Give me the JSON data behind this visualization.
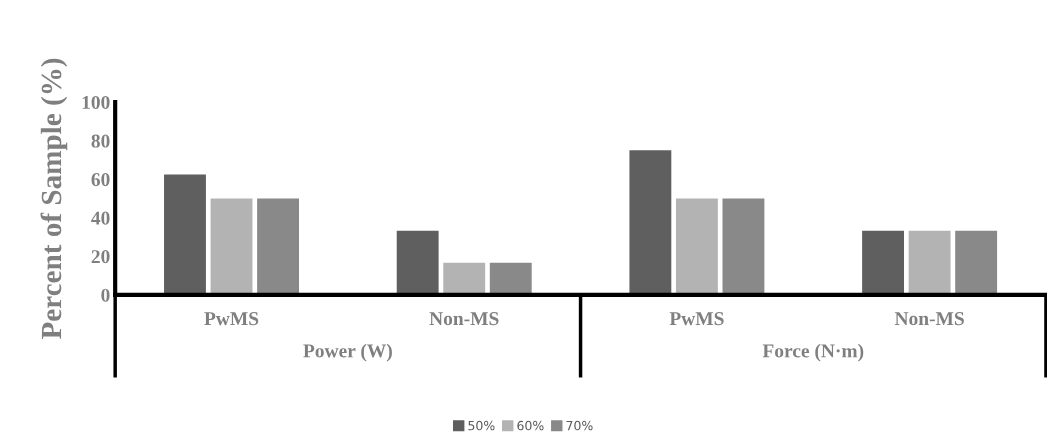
{
  "chart_data": {
    "type": "bar",
    "ylabel": "Percent of Sample (%)",
    "categories": [
      "PwMS",
      "Non-MS",
      "PwMS",
      "Non-MS"
    ],
    "series": [
      {
        "name": "50%",
        "color": "#5f5f5f",
        "values": [
          62.5,
          33.3,
          75,
          33.3
        ]
      },
      {
        "name": "60%",
        "color": "#b3b3b3",
        "values": [
          50,
          16.7,
          50,
          33.3
        ]
      },
      {
        "name": "70%",
        "color": "#898989",
        "values": [
          50,
          16.7,
          50,
          33.3
        ]
      }
    ],
    "annotations": [
      "Power (W)",
      "Force (N·m)"
    ],
    "ylim": [
      0,
      100
    ],
    "yticks": [
      0,
      20,
      40,
      60,
      80,
      100
    ],
    "grid": false,
    "legend": "bottom"
  }
}
